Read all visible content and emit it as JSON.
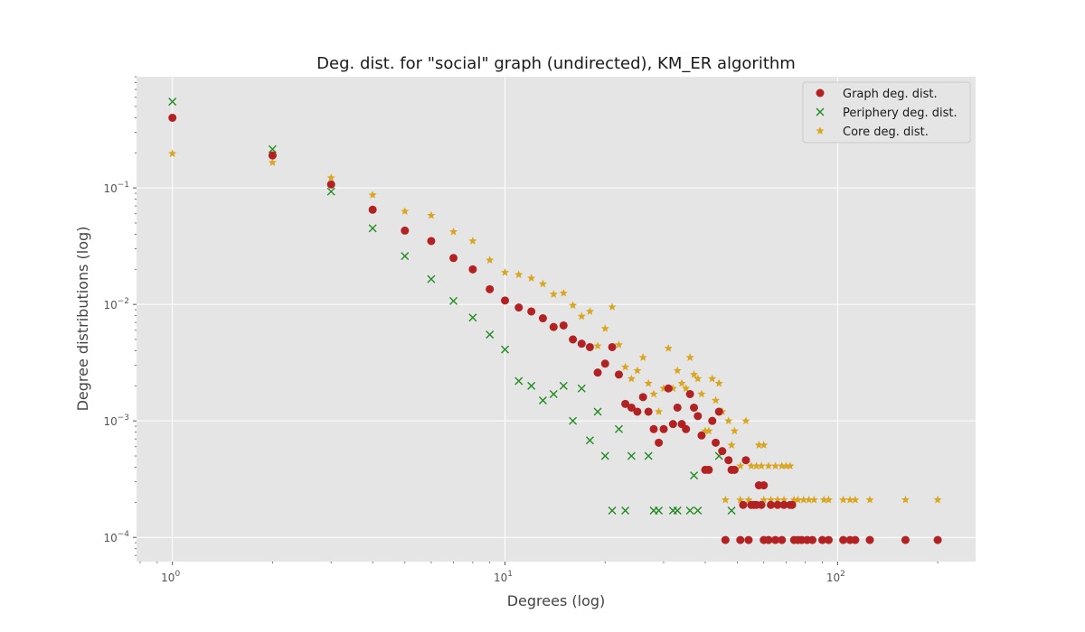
{
  "chart_data": {
    "type": "scatter",
    "title": "Deg. dist. for \"social\" graph (undirected), KM_ER algorithm",
    "xlabel": "Degrees (log)",
    "ylabel": "Degree distributions (log)",
    "xscale": "log",
    "yscale": "log",
    "xlim": [
      0.78,
      260
    ],
    "ylim": [
      6.2e-05,
      0.9
    ],
    "grid": true,
    "legend_position": "top-right",
    "x_ticks": [
      {
        "value": 1,
        "base": "10",
        "exp": "0"
      },
      {
        "value": 10,
        "base": "10",
        "exp": "1"
      },
      {
        "value": 100,
        "base": "10",
        "exp": "2"
      }
    ],
    "y_ticks": [
      {
        "value": 0.0001,
        "base": "10",
        "exp": "−4"
      },
      {
        "value": 0.001,
        "base": "10",
        "exp": "−3"
      },
      {
        "value": 0.01,
        "base": "10",
        "exp": "−2"
      },
      {
        "value": 0.1,
        "base": "10",
        "exp": "−1"
      }
    ],
    "series": [
      {
        "name": "Graph deg. dist.",
        "marker": "circle",
        "color": "#b22222",
        "points": [
          [
            1,
            0.4
          ],
          [
            2,
            0.19
          ],
          [
            3,
            0.107
          ],
          [
            4,
            0.065
          ],
          [
            5,
            0.043
          ],
          [
            6,
            0.035
          ],
          [
            7,
            0.025
          ],
          [
            8,
            0.02
          ],
          [
            9,
            0.0135
          ],
          [
            10,
            0.0108
          ],
          [
            11,
            0.0094
          ],
          [
            12,
            0.0087
          ],
          [
            13,
            0.0076
          ],
          [
            14,
            0.0064
          ],
          [
            15,
            0.0066
          ],
          [
            16,
            0.005
          ],
          [
            17,
            0.0046
          ],
          [
            18,
            0.0043
          ],
          [
            19,
            0.0026
          ],
          [
            20,
            0.0031
          ],
          [
            21,
            0.0043
          ],
          [
            22,
            0.0025
          ],
          [
            23,
            0.0014
          ],
          [
            24,
            0.0013
          ],
          [
            25,
            0.0012
          ],
          [
            26,
            0.0016
          ],
          [
            27,
            0.0012
          ],
          [
            28,
            0.00085
          ],
          [
            29,
            0.00065
          ],
          [
            30,
            0.00085
          ],
          [
            31,
            0.0019
          ],
          [
            32,
            0.00094
          ],
          [
            33,
            0.0013
          ],
          [
            34,
            0.00094
          ],
          [
            35,
            0.00085
          ],
          [
            36,
            0.0017
          ],
          [
            37,
            0.0013
          ],
          [
            38,
            0.0011
          ],
          [
            39,
            0.00075
          ],
          [
            40,
            0.00038
          ],
          [
            41,
            0.00038
          ],
          [
            42,
            0.001
          ],
          [
            43,
            0.00065
          ],
          [
            44,
            0.0012
          ],
          [
            45,
            0.00055
          ],
          [
            47,
            0.00046
          ],
          [
            48,
            0.00038
          ],
          [
            49,
            0.00038
          ],
          [
            52,
            0.00019
          ],
          [
            53,
            0.00046
          ],
          [
            55,
            0.00019
          ],
          [
            56,
            0.00019
          ],
          [
            57,
            0.00019
          ],
          [
            58,
            0.00028
          ],
          [
            59,
            0.00019
          ],
          [
            60,
            0.00028
          ],
          [
            63,
            0.00019
          ],
          [
            66,
            0.00019
          ],
          [
            69,
            0.00019
          ],
          [
            72,
            0.00019
          ],
          [
            73,
            0.00019
          ],
          [
            46,
            9.5e-05
          ],
          [
            51,
            9.5e-05
          ],
          [
            54,
            9.5e-05
          ],
          [
            60,
            9.5e-05
          ],
          [
            62,
            9.5e-05
          ],
          [
            65,
            9.5e-05
          ],
          [
            68,
            9.5e-05
          ],
          [
            74,
            9.5e-05
          ],
          [
            76,
            9.5e-05
          ],
          [
            78,
            9.5e-05
          ],
          [
            81,
            9.5e-05
          ],
          [
            84,
            9.5e-05
          ],
          [
            90,
            9.5e-05
          ],
          [
            94,
            9.5e-05
          ],
          [
            104,
            9.5e-05
          ],
          [
            109,
            9.5e-05
          ],
          [
            113,
            9.5e-05
          ],
          [
            125,
            9.5e-05
          ],
          [
            160,
            9.5e-05
          ],
          [
            200,
            9.5e-05
          ]
        ]
      },
      {
        "name": "Periphery deg. dist.",
        "marker": "x",
        "color": "#228b22",
        "points": [
          [
            1,
            0.55
          ],
          [
            2,
            0.215
          ],
          [
            3,
            0.093
          ],
          [
            4,
            0.045
          ],
          [
            5,
            0.026
          ],
          [
            6,
            0.0165
          ],
          [
            7,
            0.0107
          ],
          [
            8,
            0.0077
          ],
          [
            9,
            0.0055
          ],
          [
            10,
            0.0041
          ],
          [
            11,
            0.0022
          ],
          [
            12,
            0.002
          ],
          [
            13,
            0.0015
          ],
          [
            14,
            0.0017
          ],
          [
            15,
            0.002
          ],
          [
            16,
            0.001
          ],
          [
            17,
            0.0019
          ],
          [
            18,
            0.00068
          ],
          [
            19,
            0.0012
          ],
          [
            20,
            0.0005
          ],
          [
            21,
            0.00017
          ],
          [
            22,
            0.00085
          ],
          [
            23,
            0.00017
          ],
          [
            24,
            0.0005
          ],
          [
            27,
            0.0005
          ],
          [
            28,
            0.00017
          ],
          [
            29,
            0.00017
          ],
          [
            32,
            0.00017
          ],
          [
            33,
            0.00017
          ],
          [
            36,
            0.00017
          ],
          [
            37,
            0.00034
          ],
          [
            38,
            0.00017
          ],
          [
            44,
            0.0005
          ],
          [
            48,
            0.00017
          ]
        ]
      },
      {
        "name": "Core deg. dist.",
        "marker": "star",
        "color": "#daa520",
        "points": [
          [
            1,
            0.197
          ],
          [
            2,
            0.165
          ],
          [
            3,
            0.122
          ],
          [
            4,
            0.087
          ],
          [
            5,
            0.063
          ],
          [
            6,
            0.058
          ],
          [
            7,
            0.042
          ],
          [
            8,
            0.035
          ],
          [
            9,
            0.024
          ],
          [
            10,
            0.0188
          ],
          [
            11,
            0.018
          ],
          [
            12,
            0.0168
          ],
          [
            13,
            0.015
          ],
          [
            14,
            0.0122
          ],
          [
            15,
            0.0125
          ],
          [
            16,
            0.0098
          ],
          [
            17,
            0.0079
          ],
          [
            18,
            0.0087
          ],
          [
            19,
            0.0044
          ],
          [
            20,
            0.0062
          ],
          [
            21,
            0.0095
          ],
          [
            22,
            0.0045
          ],
          [
            23,
            0.0029
          ],
          [
            24,
            0.0023
          ],
          [
            25,
            0.0027
          ],
          [
            26,
            0.0035
          ],
          [
            27,
            0.0021
          ],
          [
            28,
            0.0017
          ],
          [
            29,
            0.0012
          ],
          [
            30,
            0.0019
          ],
          [
            31,
            0.0042
          ],
          [
            32,
            0.0019
          ],
          [
            33,
            0.0027
          ],
          [
            34,
            0.0021
          ],
          [
            35,
            0.0019
          ],
          [
            36,
            0.0035
          ],
          [
            37,
            0.0025
          ],
          [
            38,
            0.0023
          ],
          [
            39,
            0.0017
          ],
          [
            40,
            0.00082
          ],
          [
            41,
            0.00082
          ],
          [
            42,
            0.0023
          ],
          [
            43,
            0.0015
          ],
          [
            44,
            0.0021
          ],
          [
            45,
            0.0012
          ],
          [
            47,
            0.001
          ],
          [
            48,
            0.00062
          ],
          [
            49,
            0.00082
          ],
          [
            51,
            0.00041
          ],
          [
            53,
            0.001
          ],
          [
            55,
            0.00041
          ],
          [
            57,
            0.00041
          ],
          [
            58,
            0.00062
          ],
          [
            59,
            0.00041
          ],
          [
            60,
            0.00062
          ],
          [
            62,
            0.00041
          ],
          [
            65,
            0.00041
          ],
          [
            68,
            0.00041
          ],
          [
            70,
            0.00041
          ],
          [
            72,
            0.00041
          ],
          [
            46,
            0.00021
          ],
          [
            51,
            0.00021
          ],
          [
            54,
            0.00021
          ],
          [
            60,
            0.00021
          ],
          [
            63,
            0.00021
          ],
          [
            66,
            0.00021
          ],
          [
            69,
            0.00021
          ],
          [
            74,
            0.00021
          ],
          [
            76,
            0.00021
          ],
          [
            79,
            0.00021
          ],
          [
            82,
            0.00021
          ],
          [
            85,
            0.00021
          ],
          [
            91,
            0.00021
          ],
          [
            94,
            0.00021
          ],
          [
            104,
            0.00021
          ],
          [
            109,
            0.00021
          ],
          [
            113,
            0.00021
          ],
          [
            125,
            0.00021
          ],
          [
            160,
            0.00021
          ],
          [
            200,
            0.00021
          ]
        ]
      }
    ]
  }
}
